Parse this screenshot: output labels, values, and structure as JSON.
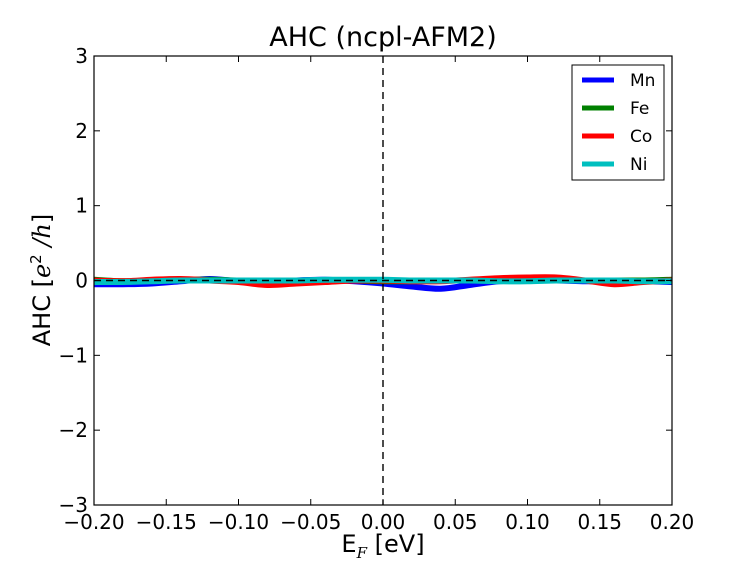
{
  "chart_data": {
    "type": "line",
    "title": "AHC (ncpl-AFM2)",
    "xlabel": {
      "base": "E",
      "sub": "F",
      "rest": " [eV]"
    },
    "ylabel": {
      "prefix": "AHC [",
      "math": "e",
      "sup": "2",
      "slash_h": " /h",
      "suffix": "]"
    },
    "xlim": [
      -0.2,
      0.2
    ],
    "ylim": [
      -3,
      3
    ],
    "xticks": [
      "−0.20",
      "−0.15",
      "−0.10",
      "−0.05",
      "0.00",
      "0.05",
      "0.10",
      "0.15",
      "0.20"
    ],
    "yticks": [
      "−3",
      "−2",
      "−1",
      "0",
      "1",
      "2",
      "3"
    ],
    "xtick_values": [
      -0.2,
      -0.15,
      -0.1,
      -0.05,
      0.0,
      0.05,
      0.1,
      0.15,
      0.2
    ],
    "ytick_values": [
      -3,
      -2,
      -1,
      0,
      1,
      2,
      3
    ],
    "grid": false,
    "legend_position": "top-right",
    "reference_lines": {
      "vertical_x": 0.0,
      "horizontal_y": 0.0,
      "style": "dashed",
      "color": "#000000"
    },
    "series": [
      {
        "name": "Mn",
        "color": "#0000ff",
        "x": [
          -0.2,
          -0.18,
          -0.16,
          -0.14,
          -0.12,
          -0.1,
          -0.08,
          -0.06,
          -0.04,
          -0.02,
          0.0,
          0.02,
          0.04,
          0.06,
          0.08,
          0.1,
          0.12,
          0.14,
          0.16,
          0.18,
          0.2
        ],
        "y": [
          -0.05,
          -0.05,
          -0.04,
          -0.01,
          0.02,
          -0.01,
          -0.03,
          0.0,
          0.01,
          -0.01,
          -0.04,
          -0.08,
          -0.11,
          -0.06,
          -0.01,
          0.0,
          0.0,
          -0.01,
          -0.01,
          -0.01,
          -0.02
        ]
      },
      {
        "name": "Fe",
        "color": "#008000",
        "x": [
          -0.2,
          -0.18,
          -0.16,
          -0.14,
          -0.12,
          -0.1,
          -0.08,
          -0.06,
          -0.04,
          -0.02,
          0.0,
          0.02,
          0.04,
          0.06,
          0.08,
          0.1,
          0.12,
          0.14,
          0.16,
          0.18,
          0.2
        ],
        "y": [
          0.01,
          -0.01,
          0.0,
          0.01,
          0.01,
          0.0,
          -0.01,
          -0.01,
          0.0,
          0.0,
          -0.01,
          -0.01,
          0.0,
          0.0,
          0.01,
          0.01,
          0.0,
          0.0,
          0.0,
          0.0,
          0.01
        ]
      },
      {
        "name": "Co",
        "color": "#ff0000",
        "x": [
          -0.2,
          -0.18,
          -0.16,
          -0.14,
          -0.12,
          -0.1,
          -0.08,
          -0.06,
          -0.04,
          -0.02,
          0.0,
          0.02,
          0.04,
          0.06,
          0.08,
          0.1,
          0.12,
          0.14,
          0.16,
          0.18,
          0.2
        ],
        "y": [
          0.0,
          -0.01,
          0.01,
          0.02,
          0.0,
          -0.02,
          -0.06,
          -0.04,
          -0.02,
          0.0,
          0.0,
          -0.01,
          -0.01,
          0.01,
          0.03,
          0.04,
          0.04,
          0.0,
          -0.05,
          -0.02,
          0.0
        ]
      },
      {
        "name": "Ni",
        "color": "#00bfbf",
        "x": [
          -0.2,
          -0.18,
          -0.16,
          -0.14,
          -0.12,
          -0.1,
          -0.08,
          -0.06,
          -0.04,
          -0.02,
          0.0,
          0.02,
          0.04,
          0.06,
          0.08,
          0.1,
          0.12,
          0.14,
          0.16,
          0.18,
          0.2
        ],
        "y": [
          -0.02,
          -0.02,
          -0.01,
          0.0,
          0.0,
          0.0,
          0.0,
          0.0,
          0.01,
          0.01,
          0.01,
          0.0,
          0.0,
          0.0,
          -0.01,
          -0.01,
          0.0,
          0.0,
          0.0,
          -0.01,
          -0.01
        ]
      }
    ]
  }
}
